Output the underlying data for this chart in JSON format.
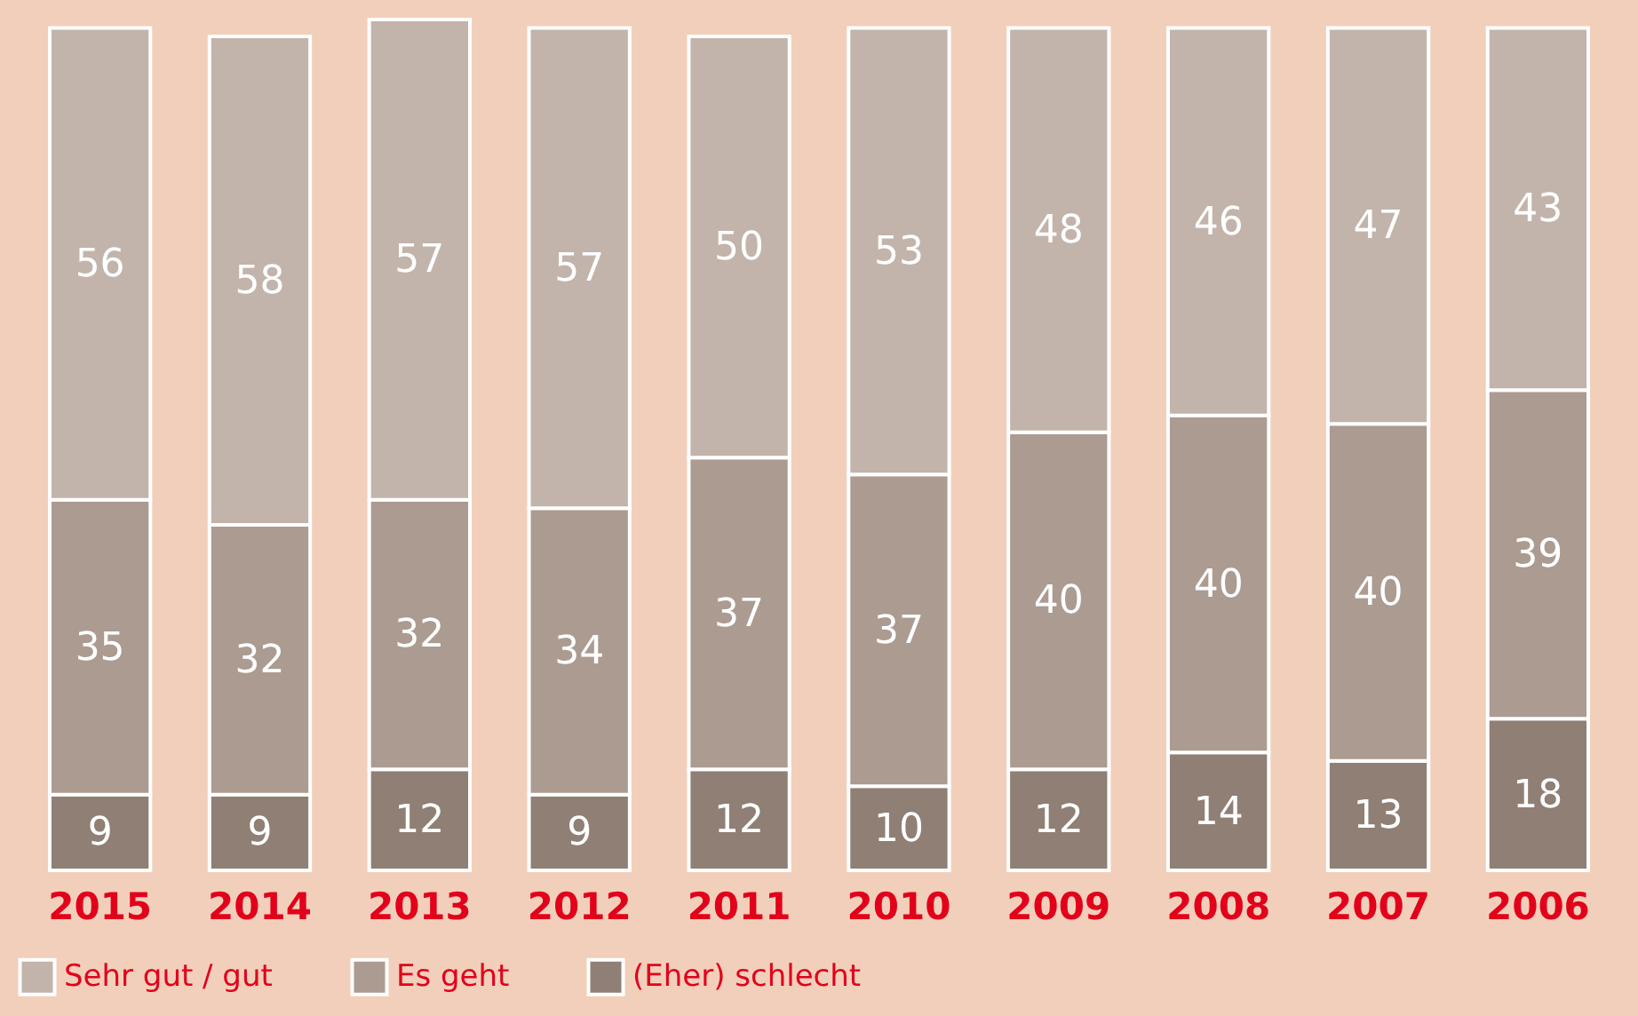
{
  "chart_data": {
    "type": "bar",
    "stacked": true,
    "data_labels": true,
    "legend": "bottom left",
    "categories": [
      "2015",
      "2014",
      "2013",
      "2012",
      "2011",
      "2010",
      "2009",
      "2008",
      "2007",
      "2006"
    ],
    "series": [
      {
        "name": "(Eher) schlecht",
        "color": "#8f7f74",
        "values": [
          9,
          9,
          12,
          9,
          12,
          10,
          12,
          14,
          13,
          18
        ]
      },
      {
        "name": "Es geht",
        "color": "#ab9b91",
        "values": [
          35,
          32,
          32,
          34,
          37,
          37,
          40,
          40,
          40,
          39
        ]
      },
      {
        "name": "Sehr gut / gut",
        "color": "#c2b4ab",
        "values": [
          56,
          58,
          57,
          57,
          50,
          53,
          48,
          46,
          47,
          43
        ]
      }
    ]
  }
}
